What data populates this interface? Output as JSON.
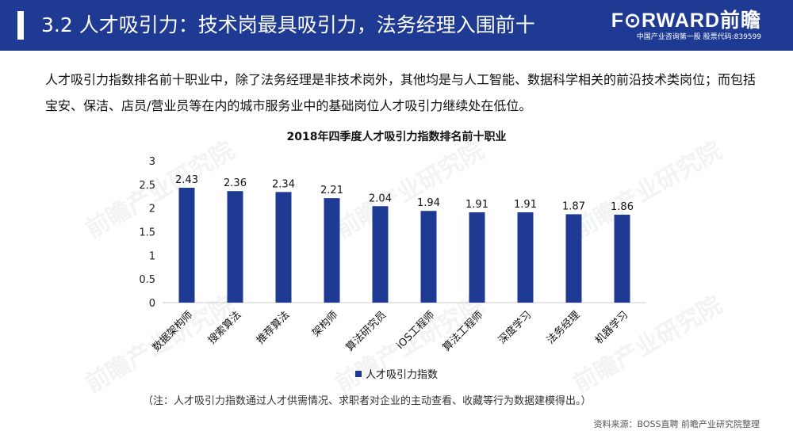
{
  "header": {
    "title": "3.2 人才吸引力：技术岗最具吸引力，法务经理入围前十",
    "logo": "F⊙RWARD前瞻",
    "logo_sub": "中国产业咨询第一股 股票代码:839599"
  },
  "intro": "人才吸引力指数排名前十职业中，除了法务经理是非技术岗外，其他均是与人工智能、数据科学相关的前沿技术类岗位；而包括宝安、保洁、店员/营业员等在内的城市服务业中的基础岗位人才吸引力继续处在低位。",
  "chart_data": {
    "type": "bar",
    "title": "2018年四季度人才吸引力指数排名前十职业",
    "categories": [
      "数据架构师",
      "搜索算法",
      "推荐算法",
      "架构师",
      "算法研究员",
      "iOS工程师",
      "算法工程师",
      "深度学习",
      "法务经理",
      "机器学习"
    ],
    "series": [
      {
        "name": "人才吸引力指数",
        "values": [
          2.43,
          2.36,
          2.34,
          2.21,
          2.04,
          1.94,
          1.91,
          1.91,
          1.87,
          1.86
        ]
      }
    ],
    "y_ticks": [
      "0",
      "0.5",
      "1",
      "1.5",
      "2",
      "2.5",
      "3"
    ],
    "ylim": [
      0,
      3
    ],
    "grid": false,
    "legend_position": "bottom",
    "bar_color": "#1f3a93"
  },
  "note": "（注：人才吸引力指数通过人才供需情况、求职者对企业的主动查看、收藏等行为数据建模得出。）",
  "source": "资料来源：BOSS直聘 前瞻产业研究院整理",
  "watermark": "前瞻产业研究院"
}
